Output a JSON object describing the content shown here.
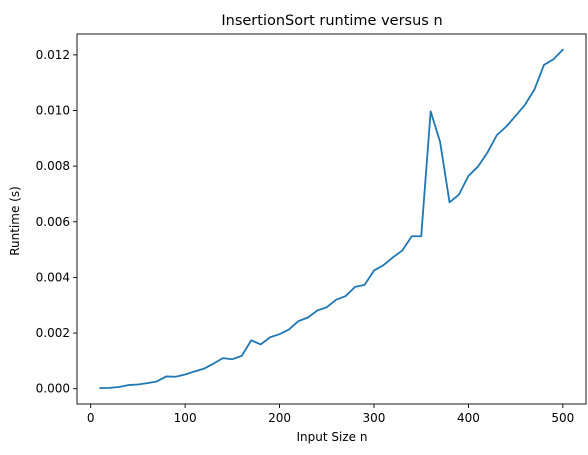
{
  "chart_data": {
    "type": "line",
    "title": "InsertionSort runtime versus n",
    "xlabel": "Input Size n",
    "ylabel": "Runtime (s)",
    "xlim": [
      -14.5,
      524.5
    ],
    "ylim": [
      -0.00055,
      0.01275
    ],
    "x_ticks": [
      0,
      100,
      200,
      300,
      400,
      500
    ],
    "x_tick_labels": [
      "0",
      "100",
      "200",
      "300",
      "400",
      "500"
    ],
    "y_ticks": [
      0.0,
      0.002,
      0.004,
      0.006,
      0.008,
      0.01,
      0.012
    ],
    "y_tick_labels": [
      "0.000",
      "0.002",
      "0.004",
      "0.006",
      "0.008",
      "0.010",
      "0.012"
    ],
    "grid": false,
    "series": [
      {
        "color": "#1f77b4",
        "x": [
          10,
          20,
          30,
          40,
          50,
          60,
          70,
          80,
          90,
          100,
          110,
          120,
          130,
          140,
          150,
          160,
          170,
          180,
          190,
          200,
          210,
          220,
          230,
          240,
          250,
          260,
          270,
          280,
          290,
          300,
          310,
          320,
          330,
          340,
          350,
          360,
          370,
          380,
          390,
          400,
          410,
          420,
          430,
          440,
          450,
          460,
          470,
          480,
          490,
          500
        ],
        "y": [
          2e-05,
          3e-05,
          6e-05,
          0.00013,
          0.00015,
          0.0002,
          0.00026,
          0.00044,
          0.00043,
          0.00051,
          0.00062,
          0.00072,
          0.0009,
          0.0011,
          0.00106,
          0.00118,
          0.00174,
          0.00159,
          0.00185,
          0.00196,
          0.00213,
          0.00243,
          0.00256,
          0.00281,
          0.00293,
          0.0032,
          0.00333,
          0.00366,
          0.00373,
          0.00425,
          0.00444,
          0.00472,
          0.00497,
          0.00548,
          0.00548,
          0.00997,
          0.00887,
          0.0067,
          0.00698,
          0.00765,
          0.00798,
          0.00848,
          0.00911,
          0.00942,
          0.00981,
          0.01021,
          0.01076,
          0.01164,
          0.01184,
          0.01219
        ]
      }
    ]
  }
}
